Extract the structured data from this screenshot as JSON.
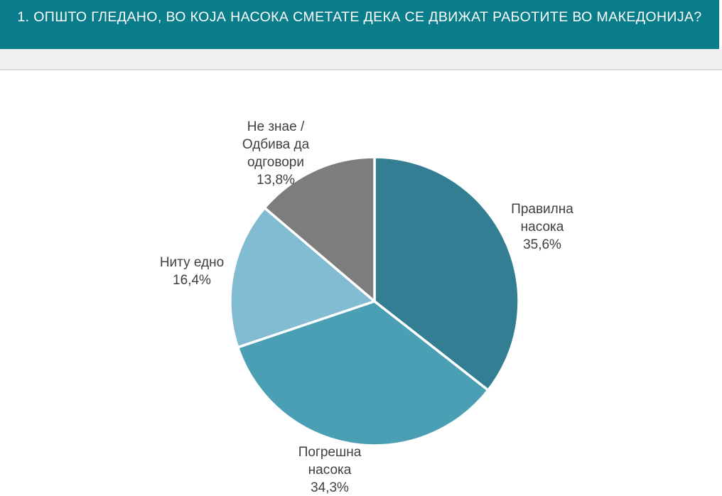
{
  "header": {
    "title": "1. ОПШТО ГЛЕДАНО, ВО КОЈА НАСОКА СМЕТАТЕ ДЕКА СЕ ДВИЖАТ  РАБОТИТЕ ВО МАКЕДОНИЈА?",
    "background_color": "#0a7d8b",
    "text_color": "#ffffff",
    "sub_band_color": "#f0f0f0",
    "sub_band_border_color": "#d8d8d8"
  },
  "chart_data": {
    "type": "pie",
    "title": "1. ОПШТО ГЛЕДАНО, ВО КОЈА НАСОКА СМЕТАТЕ ДЕКА СЕ ДВИЖАТ  РАБОТИТЕ ВО МАКЕДОНИЈА?",
    "start_angle_deg": 0,
    "direction": "clockwise",
    "legend": "none",
    "labels_position": "outside",
    "separator_color": "#ffffff",
    "label_text_color": "#3f3f3f",
    "categories": [
      "Правилна насока",
      "Погрешна насока",
      "Ниту едно",
      "Не знае / Одбива да одговори"
    ],
    "values": [
      35.6,
      34.3,
      16.4,
      13.8
    ],
    "slices": [
      {
        "label": "Правилна насока",
        "value": 35.6,
        "value_display": "35,6%",
        "color": "#337e93",
        "slug": "pravilna-nasoka",
        "callout": "Правилна\nнасока\n35,6%"
      },
      {
        "label": "Погрешна насока",
        "value": 34.3,
        "value_display": "34,3%",
        "color": "#4a9fb4",
        "slug": "pogreshna-nasoka",
        "callout": "Погрешна\nнасока\n34,3%"
      },
      {
        "label": "Ниту едно",
        "value": 16.4,
        "value_display": "16,4%",
        "color": "#82bcd2",
        "slug": "nitu-edno",
        "callout": "Ниту едно\n16,4%"
      },
      {
        "label": "Не знае / Одбива да одговори",
        "value": 13.8,
        "value_display": "13,8%",
        "color": "#7d7d7d",
        "slug": "ne-znae-odbiva-da-odgovori",
        "callout": "Не знае /\nОдбива да\nодговори\n13,8%"
      }
    ]
  }
}
